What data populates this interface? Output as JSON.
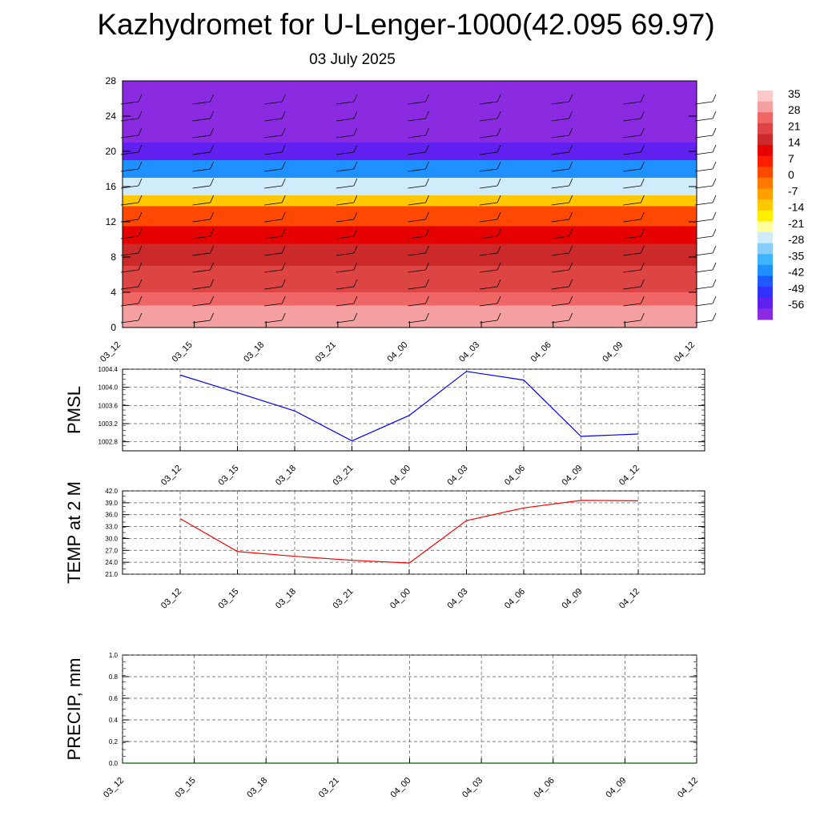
{
  "title": "Kazhydromet for U-Lenger-1000(42.095 69.97)",
  "subtitle": "03 July 2025",
  "colors": {
    "pmsl_line": "#0000ff",
    "temp_line": "#ff0000",
    "precip_line": "#006400",
    "colorbar": [
      "#8a2be2",
      "#6020f0",
      "#3030ff",
      "#1e5aff",
      "#1e90ff",
      "#3cb4ff",
      "#87cefa",
      "#d0ecfa",
      "#ffffa0",
      "#fff000",
      "#ffc800",
      "#ffa000",
      "#ff7800",
      "#ff4800",
      "#ff1e00",
      "#e60000",
      "#cc2a2a",
      "#dd4444",
      "#ee6666",
      "#f5a0a0",
      "#ffc8c8"
    ]
  },
  "chart_data": [
    {
      "type": "heatmap",
      "name": "temperature-wind-profile",
      "x_ticks": [
        "03_12",
        "03_15",
        "03_18",
        "03_21",
        "04_00",
        "04_03",
        "04_06",
        "04_09",
        "04_12"
      ],
      "y_ticks": [
        "0",
        "4",
        "8",
        "12",
        "16",
        "20",
        "24",
        "28"
      ],
      "ylim": [
        0,
        28
      ],
      "colorbar_labels": [
        "35",
        "28",
        "21",
        "14",
        "7",
        "0",
        "-7",
        "-14",
        "-21",
        "-28",
        "-35",
        "-42",
        "-49",
        "-56"
      ],
      "bands": [
        {
          "y": [
            0,
            2.5
          ],
          "value": 35
        },
        {
          "y": [
            2.5,
            4
          ],
          "value": 28
        },
        {
          "y": [
            4,
            7
          ],
          "value": 25
        },
        {
          "y": [
            7,
            9.5
          ],
          "value": 21
        },
        {
          "y": [
            9.5,
            11.5
          ],
          "value": 14
        },
        {
          "y": [
            11.5,
            13.8
          ],
          "value": 7
        },
        {
          "y": [
            13.8,
            15
          ],
          "value": -7
        },
        {
          "y": [
            15,
            17
          ],
          "value": -21
        },
        {
          "y": [
            17,
            19
          ],
          "value": -35
        },
        {
          "y": [
            19,
            21
          ],
          "value": -49
        },
        {
          "y": [
            21,
            28
          ],
          "value": -56
        }
      ]
    },
    {
      "type": "line",
      "ylabel": "PMSL",
      "categories": [
        "03_12",
        "03_15",
        "03_18",
        "03_21",
        "04_00",
        "04_03",
        "04_06",
        "04_09",
        "04_12"
      ],
      "y_ticks": [
        "1002.8",
        "1003.2",
        "1003.6",
        "1004.0",
        "1004.4"
      ],
      "ylim": [
        1002.6,
        1004.4
      ],
      "values": [
        1004.27,
        1003.88,
        1003.48,
        1002.82,
        1003.38,
        1004.35,
        1004.16,
        1002.92,
        1002.97
      ]
    },
    {
      "type": "line",
      "ylabel": "TEMP at 2 M",
      "categories": [
        "03_12",
        "03_15",
        "03_18",
        "03_21",
        "04_00",
        "04_03",
        "04_06",
        "04_09",
        "04_12"
      ],
      "y_ticks": [
        "21.0",
        "24.0",
        "27.0",
        "30.0",
        "33.0",
        "36.0",
        "39.0",
        "42.0"
      ],
      "ylim": [
        21,
        42
      ],
      "values": [
        35.0,
        26.7,
        25.5,
        24.5,
        23.8,
        34.5,
        37.7,
        39.6,
        39.5
      ]
    },
    {
      "type": "line",
      "ylabel": "PRECIP, mm",
      "categories": [
        "03_12",
        "03_15",
        "03_18",
        "03_21",
        "04_00",
        "04_03",
        "04_06",
        "04_09",
        "04_12"
      ],
      "y_ticks": [
        "0.0",
        "0.2",
        "0.4",
        "0.6",
        "0.8",
        "1.0"
      ],
      "ylim": [
        0,
        1
      ],
      "values": [
        0,
        0,
        0,
        0,
        0,
        0,
        0,
        0,
        0
      ]
    }
  ]
}
